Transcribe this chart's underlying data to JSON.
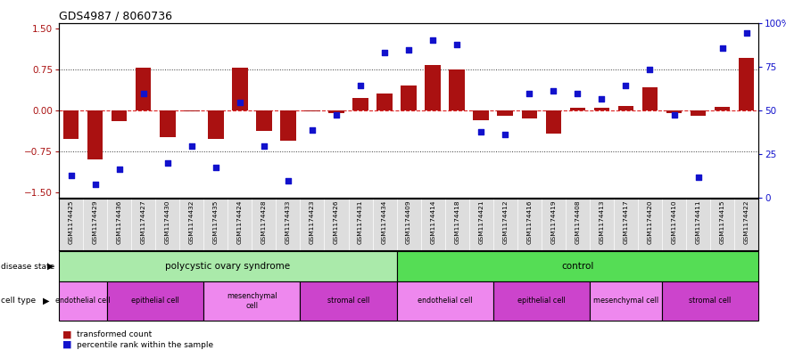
{
  "title": "GDS4987 / 8060736",
  "samples": [
    "GSM1174425",
    "GSM1174429",
    "GSM1174436",
    "GSM1174427",
    "GSM1174430",
    "GSM1174432",
    "GSM1174435",
    "GSM1174424",
    "GSM1174428",
    "GSM1174433",
    "GSM1174423",
    "GSM1174426",
    "GSM1174431",
    "GSM1174434",
    "GSM1174409",
    "GSM1174414",
    "GSM1174418",
    "GSM1174421",
    "GSM1174412",
    "GSM1174416",
    "GSM1174419",
    "GSM1174408",
    "GSM1174413",
    "GSM1174417",
    "GSM1174420",
    "GSM1174410",
    "GSM1174411",
    "GSM1174415",
    "GSM1174422"
  ],
  "bar_values": [
    -0.52,
    -0.9,
    -0.2,
    0.78,
    -0.5,
    -0.02,
    -0.52,
    0.78,
    -0.38,
    -0.55,
    -0.02,
    -0.05,
    0.22,
    0.3,
    0.46,
    0.82,
    0.75,
    -0.18,
    -0.1,
    -0.15,
    -0.42,
    0.04,
    0.04,
    0.08,
    0.42,
    -0.05,
    -0.1,
    0.06,
    0.95
  ],
  "dot_values": [
    10,
    5,
    14,
    60,
    18,
    28,
    15,
    55,
    28,
    7,
    38,
    47,
    65,
    85,
    87,
    93,
    90,
    37,
    35,
    60,
    62,
    60,
    57,
    65,
    75,
    47,
    9,
    88,
    97
  ],
  "disease_state": [
    {
      "label": "polycystic ovary syndrome",
      "start": 0,
      "end": 14,
      "color": "#AAEAAA"
    },
    {
      "label": "control",
      "start": 14,
      "end": 29,
      "color": "#55DD55"
    }
  ],
  "cell_types": [
    {
      "label": "endothelial cell",
      "start": 0,
      "end": 2,
      "color": "#EE88EE"
    },
    {
      "label": "epithelial cell",
      "start": 2,
      "end": 6,
      "color": "#CC44CC"
    },
    {
      "label": "mesenchymal\ncell",
      "start": 6,
      "end": 10,
      "color": "#EE88EE"
    },
    {
      "label": "stromal cell",
      "start": 10,
      "end": 14,
      "color": "#CC44CC"
    },
    {
      "label": "endothelial cell",
      "start": 14,
      "end": 18,
      "color": "#EE88EE"
    },
    {
      "label": "epithelial cell",
      "start": 18,
      "end": 22,
      "color": "#CC44CC"
    },
    {
      "label": "mesenchymal cell",
      "start": 22,
      "end": 25,
      "color": "#EE88EE"
    },
    {
      "label": "stromal cell",
      "start": 25,
      "end": 29,
      "color": "#CC44CC"
    }
  ],
  "ylim": [
    -1.6,
    1.6
  ],
  "yticks_left": [
    -1.5,
    -0.75,
    0.0,
    0.75,
    1.5
  ],
  "yticks_right": [
    0,
    25,
    50,
    75,
    100
  ],
  "bar_color": "#AA1111",
  "dot_color": "#1111CC",
  "hline_color": "#DD2222",
  "dotted_color": "#333333",
  "label_bg": "#DDDDDD",
  "fig_width": 8.81,
  "fig_height": 3.93,
  "dpi": 100
}
